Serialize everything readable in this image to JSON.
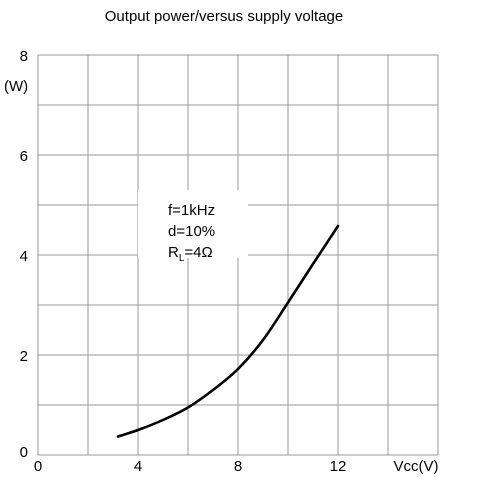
{
  "chart_data": {
    "type": "line",
    "title": "Output power/versus supply voltage",
    "xlabel": "Vcc(V)",
    "ylabel": "(W)",
    "xlim": [
      0,
      16
    ],
    "ylim": [
      0,
      8
    ],
    "x_tick_labels": [
      "0",
      "4",
      "8",
      "12"
    ],
    "y_tick_labels": [
      "0",
      "2",
      "4",
      "6",
      "8"
    ],
    "x_grid_step": 2,
    "y_grid_step": 1,
    "grid": true,
    "annotation": {
      "line1": "f=1kHz",
      "line2": "d=10%",
      "line3_main": "R",
      "line3_sub": "L",
      "line3_rest": "=4Ω"
    },
    "series": [
      {
        "color": "#000000",
        "x": [
          3.2,
          4,
          5,
          6,
          7,
          8,
          9,
          10,
          11,
          12
        ],
        "y": [
          0.37,
          0.5,
          0.7,
          0.95,
          1.3,
          1.72,
          2.3,
          3.05,
          3.82,
          4.58
        ]
      }
    ]
  }
}
